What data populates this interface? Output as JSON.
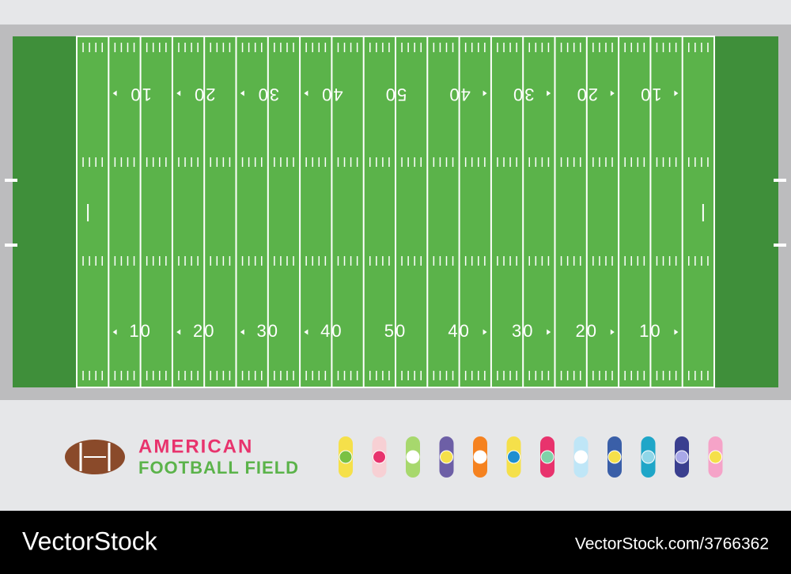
{
  "field": {
    "top_numbers": [
      "10",
      "20",
      "30",
      "40",
      "50",
      "40",
      "30",
      "20",
      "10"
    ],
    "bottom_numbers": [
      "10",
      "20",
      "30",
      "40",
      "50",
      "40",
      "30",
      "20",
      "10"
    ]
  },
  "caption": {
    "line1": "AMERICAN",
    "line2": "FOOTBALL FIELD"
  },
  "footer": {
    "brand": "VectorStock",
    "id": "VectorStock.com/3766362"
  }
}
